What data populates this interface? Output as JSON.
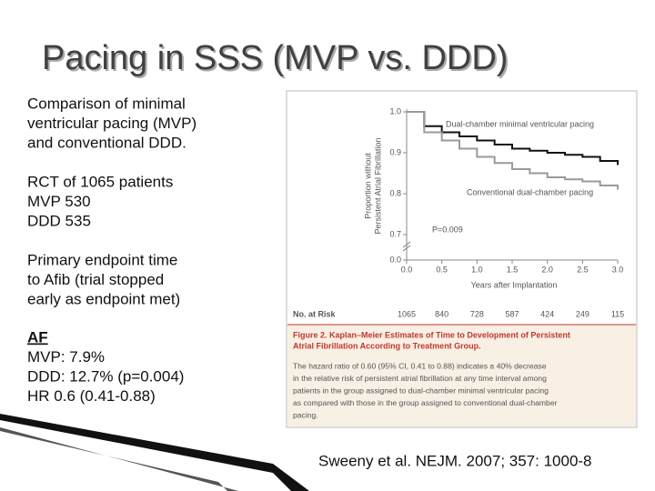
{
  "title": "Pacing in SSS (MVP vs. DDD)",
  "text": [
    [
      "Comparison of minimal",
      "ventricular pacing (MVP)",
      "and conventional DDD."
    ],
    [
      "RCT of 1065 patients",
      "MVP 530",
      "DDD 535"
    ],
    [
      "Primary endpoint time",
      "to Afib (trial stopped",
      "early as endpoint met)"
    ],
    [
      "AF",
      "MVP: 7.9%",
      "DDD: 12.7% (p=0.004)",
      "HR 0.6 (0.41-0.88)"
    ]
  ],
  "citation": "Sweeny et al. NEJM. 2007; 357: 1000-8",
  "chart_data": {
    "type": "step",
    "y_label": [
      "Proportion without",
      "Persistent Atrial Fibrillation"
    ],
    "x_label": "Years after Implantation",
    "x": [
      0,
      0.25,
      0.5,
      0.75,
      1.0,
      1.25,
      1.5,
      1.75,
      2.0,
      2.25,
      2.5,
      2.75,
      3.0
    ],
    "series": [
      {
        "name": "Dual-chamber minimal ventricular pacing",
        "color": "#111111",
        "values": [
          1.0,
          0.965,
          0.95,
          0.94,
          0.93,
          0.92,
          0.91,
          0.905,
          0.9,
          0.895,
          0.89,
          0.88,
          0.87
        ]
      },
      {
        "name": "Conventional dual-chamber pacing",
        "color": "#9a9a9a",
        "values": [
          1.0,
          0.95,
          0.93,
          0.91,
          0.89,
          0.875,
          0.86,
          0.85,
          0.84,
          0.835,
          0.83,
          0.82,
          0.81
        ]
      }
    ],
    "annotation": "P=0.009",
    "xlim": [
      0,
      3.0
    ],
    "xticks": [
      {
        "value": 0,
        "label": "0.0"
      },
      0.5,
      {
        "value": 1,
        "label": "1.0"
      },
      1.5,
      {
        "value": 2,
        "label": "2.0"
      },
      2.5,
      {
        "value": 3,
        "label": "3.0"
      }
    ],
    "ylim": [
      0,
      1.0
    ],
    "yticks": [
      {
        "value": 0,
        "label": "0.0"
      },
      0.7,
      0.8,
      0.9,
      {
        "value": 1,
        "label": "1.0"
      }
    ],
    "axis_break": [
      0,
      0.7
    ],
    "at_risk": {
      "label": "No. at Risk",
      "values": [
        "1065",
        "840",
        "728",
        "587",
        "424",
        "249",
        "115"
      ]
    },
    "caption_title": [
      "Figure 2. Kaplan–Meier Estimates of Time to Development of Persistent",
      "Atrial Fibrillation According to Treatment Group."
    ],
    "caption_body": [
      "The hazard ratio of 0.60 (95% CI, 0.41 to 0.88) indicates a 40% decrease",
      "in the relative risk of persistent atrial fibrillation at any time interval among",
      "patients in the group assigned to dual-chamber minimal ventricular pacing",
      "as compared with those in the group assigned to conventional dual-chamber",
      "pacing."
    ]
  }
}
